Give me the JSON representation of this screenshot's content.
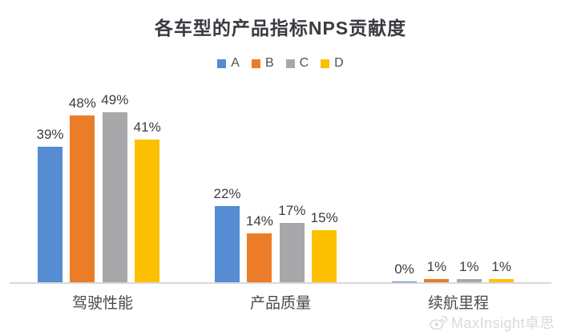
{
  "title": "各车型的产品指标NPS贡献度",
  "chart_data": {
    "type": "bar",
    "title": "各车型的产品指标NPS贡献度",
    "categories": [
      "驾驶性能",
      "产品质量",
      "续航里程"
    ],
    "series": [
      {
        "name": "A",
        "color": "#558CD2",
        "values": [
          39,
          22,
          0
        ]
      },
      {
        "name": "B",
        "color": "#EB7D28",
        "values": [
          48,
          14,
          1
        ]
      },
      {
        "name": "C",
        "color": "#A8A8AA",
        "values": [
          49,
          17,
          1
        ]
      },
      {
        "name": "D",
        "color": "#FDC000",
        "values": [
          41,
          15,
          1
        ]
      }
    ],
    "value_suffix": "%",
    "value_labels": true,
    "legend_position": "top",
    "grid": false,
    "y_axis_visible": false
  },
  "watermark": {
    "text": "MaxInsight卓思",
    "icon": "weibo-icon"
  },
  "colors": {
    "background": "#FFFFFF",
    "axis_line": "#D9D9D9",
    "title_text": "#3A3A40",
    "label_text": "#3C3C3C",
    "category_text": "#4A4A4A",
    "legend_text": "#515151",
    "watermark_text": "#D9D9DF"
  }
}
